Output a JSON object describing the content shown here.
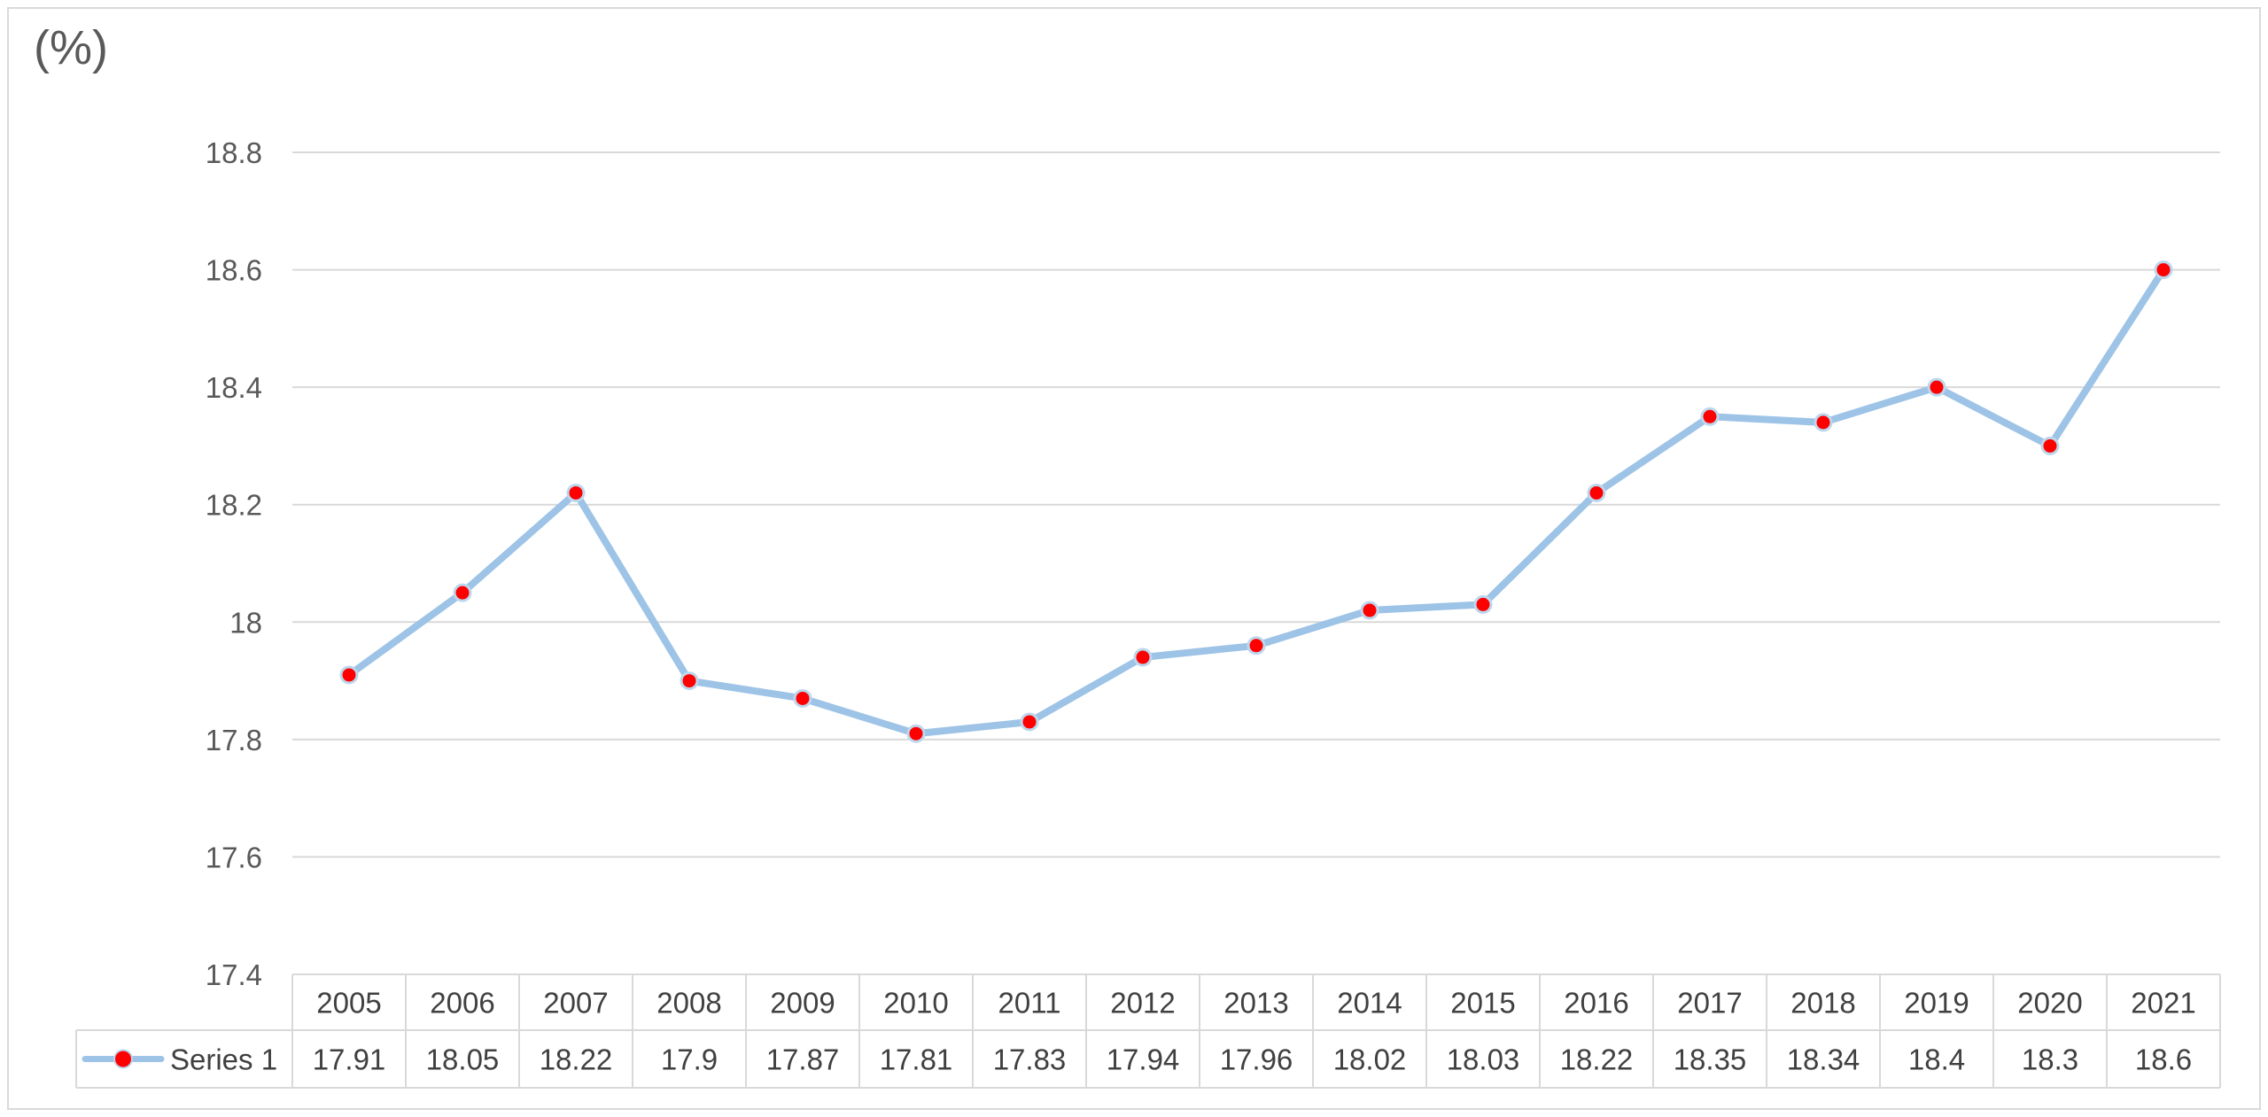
{
  "chart_data": {
    "type": "line",
    "unit_label": "(%)",
    "categories": [
      "2005",
      "2006",
      "2007",
      "2008",
      "2009",
      "2010",
      "2011",
      "2012",
      "2013",
      "2014",
      "2015",
      "2016",
      "2017",
      "2018",
      "2019",
      "2020",
      "2021"
    ],
    "series": [
      {
        "name": "Series 1",
        "values": [
          17.91,
          18.05,
          18.22,
          17.9,
          17.87,
          17.81,
          17.83,
          17.94,
          17.96,
          18.02,
          18.03,
          18.22,
          18.35,
          18.34,
          18.4,
          18.3,
          18.6
        ],
        "value_labels": [
          "17.91",
          "18.05",
          "18.22",
          "17.9",
          "17.87",
          "17.81",
          "17.83",
          "17.94",
          "17.96",
          "18.02",
          "18.03",
          "18.22",
          "18.35",
          "18.34",
          "18.4",
          "18.3",
          "18.6"
        ],
        "line_color": "#9dc3e6",
        "marker_color": "#ff0000"
      }
    ],
    "ylim": [
      17.4,
      18.8
    ],
    "yticks": [
      17.4,
      17.6,
      17.8,
      18,
      18.2,
      18.4,
      18.6,
      18.8
    ],
    "ytick_labels": [
      "17.4",
      "17.6",
      "17.8",
      "18",
      "18.2",
      "18.4",
      "18.6",
      "18.8"
    ],
    "grid": true,
    "legend": "data-table",
    "data_table": true
  }
}
